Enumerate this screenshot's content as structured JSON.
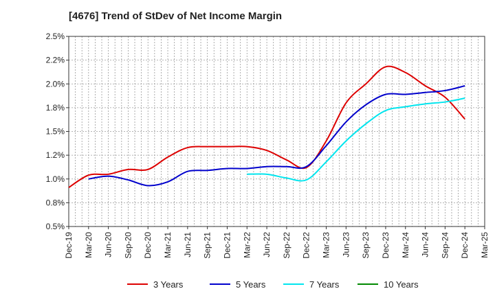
{
  "chart_data": {
    "type": "line",
    "title": "[4676]  Trend of StDev of Net Income Margin",
    "xlabel": "",
    "ylabel": "",
    "ylim": [
      0.5,
      2.5
    ],
    "y_ticks": [
      0.5,
      0.75,
      1.0,
      1.25,
      1.5,
      1.75,
      2.0,
      2.25,
      2.5
    ],
    "y_tick_labels": [
      "0.5%",
      "0.8%",
      "1.0%",
      "1.2%",
      "1.5%",
      "1.8%",
      "2.0%",
      "2.2%",
      "2.5%"
    ],
    "x_tick_labels": [
      "Dec-19",
      "Mar-20",
      "Jun-20",
      "Sep-20",
      "Dec-20",
      "Mar-21",
      "Jun-21",
      "Sep-21",
      "Dec-21",
      "Mar-22",
      "Jun-22",
      "Sep-22",
      "Dec-22",
      "Mar-23",
      "Jun-23",
      "Sep-23",
      "Dec-23",
      "Mar-24",
      "Jun-24",
      "Sep-24",
      "Dec-24",
      "Mar-25"
    ],
    "grid": true,
    "legend_position": "bottom",
    "series": [
      {
        "name": "3 Years",
        "color": "#dd0000",
        "points": [
          [
            "Dec-19",
            0.91
          ],
          [
            "Mar-20",
            1.04
          ],
          [
            "Jun-20",
            1.05
          ],
          [
            "Sep-20",
            1.1
          ],
          [
            "Dec-20",
            1.1
          ],
          [
            "Mar-21",
            1.23
          ],
          [
            "Jun-21",
            1.33
          ],
          [
            "Sep-21",
            1.34
          ],
          [
            "Dec-21",
            1.34
          ],
          [
            "Mar-22",
            1.34
          ],
          [
            "Jun-22",
            1.3
          ],
          [
            "Sep-22",
            1.2
          ],
          [
            "Dec-22",
            1.12
          ],
          [
            "Mar-23",
            1.4
          ],
          [
            "Jun-23",
            1.8
          ],
          [
            "Sep-23",
            2.0
          ],
          [
            "Dec-23",
            2.18
          ],
          [
            "Mar-24",
            2.12
          ],
          [
            "Jun-24",
            1.98
          ],
          [
            "Sep-24",
            1.86
          ],
          [
            "Dec-24",
            1.63
          ]
        ]
      },
      {
        "name": "5 Years",
        "color": "#0000cc",
        "points": [
          [
            "Mar-20",
            1.0
          ],
          [
            "Jun-20",
            1.03
          ],
          [
            "Sep-20",
            0.99
          ],
          [
            "Dec-20",
            0.93
          ],
          [
            "Mar-21",
            0.97
          ],
          [
            "Jun-21",
            1.08
          ],
          [
            "Sep-21",
            1.09
          ],
          [
            "Dec-21",
            1.11
          ],
          [
            "Mar-22",
            1.11
          ],
          [
            "Jun-22",
            1.13
          ],
          [
            "Sep-22",
            1.13
          ],
          [
            "Dec-22",
            1.13
          ],
          [
            "Mar-23",
            1.35
          ],
          [
            "Jun-23",
            1.6
          ],
          [
            "Sep-23",
            1.78
          ],
          [
            "Dec-23",
            1.89
          ],
          [
            "Mar-24",
            1.89
          ],
          [
            "Jun-24",
            1.91
          ],
          [
            "Sep-24",
            1.93
          ],
          [
            "Dec-24",
            1.98
          ]
        ]
      },
      {
        "name": "7 Years",
        "color": "#00e5ee",
        "points": [
          [
            "Mar-22",
            1.05
          ],
          [
            "Jun-22",
            1.05
          ],
          [
            "Sep-22",
            1.01
          ],
          [
            "Dec-22",
            0.99
          ],
          [
            "Mar-23",
            1.18
          ],
          [
            "Jun-23",
            1.4
          ],
          [
            "Sep-23",
            1.58
          ],
          [
            "Dec-23",
            1.72
          ],
          [
            "Mar-24",
            1.76
          ],
          [
            "Jun-24",
            1.79
          ],
          [
            "Sep-24",
            1.81
          ],
          [
            "Dec-24",
            1.85
          ]
        ]
      },
      {
        "name": "10 Years",
        "color": "#008800",
        "points": []
      }
    ]
  }
}
